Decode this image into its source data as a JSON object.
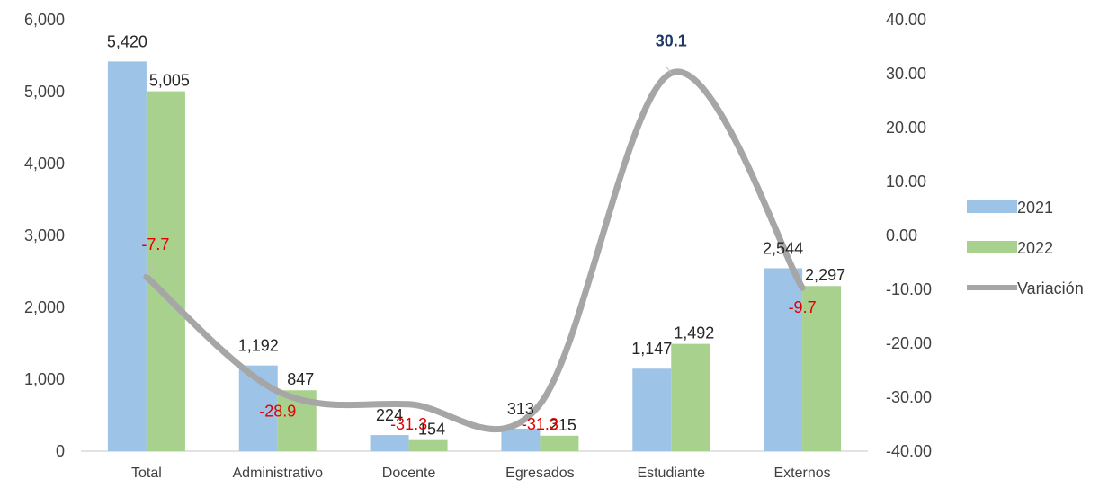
{
  "chart_data": {
    "type": "bar",
    "categories": [
      "Total",
      "Administrativo",
      "Docente",
      "Egresados",
      "Estudiante",
      "Externos"
    ],
    "series": [
      {
        "name": "2021",
        "kind": "bar",
        "axis": "left",
        "color": "#9dc3e6",
        "values": [
          5420,
          1192,
          224,
          313,
          1147,
          2544
        ],
        "labels": [
          "5,420",
          "1,192",
          "224",
          "313",
          "1,147",
          "2,544"
        ]
      },
      {
        "name": "2022",
        "kind": "bar",
        "axis": "left",
        "color": "#a9d18e",
        "values": [
          5005,
          847,
          154,
          215,
          1492,
          2297
        ],
        "labels": [
          "5,005",
          "847",
          "154",
          "215",
          "1,492",
          "2,297"
        ]
      },
      {
        "name": "Variación",
        "kind": "line",
        "axis": "right",
        "color": "#a6a6a6",
        "values": [
          -7.7,
          -28.9,
          -31.3,
          -31.3,
          30.1,
          -9.7
        ],
        "labels": [
          "-7.7",
          "-28.9",
          "-31.3",
          "-31.3",
          "30.1",
          "-9.7"
        ]
      }
    ],
    "y_left": {
      "min": 0,
      "max": 6000,
      "ticks": [
        "0",
        "1,000",
        "2,000",
        "3,000",
        "4,000",
        "5,000",
        "6,000"
      ]
    },
    "y_right": {
      "min": -40,
      "max": 40,
      "ticks": [
        "-40.00",
        "-30.00",
        "-20.00",
        "-10.00",
        "0.00",
        "10.00",
        "20.00",
        "30.00",
        "40.00"
      ]
    },
    "legend": "right",
    "grid": false,
    "colors": {
      "negative_label": "#e00000",
      "positive_label": "#1f3864",
      "axis": "#d9d9d9"
    }
  }
}
